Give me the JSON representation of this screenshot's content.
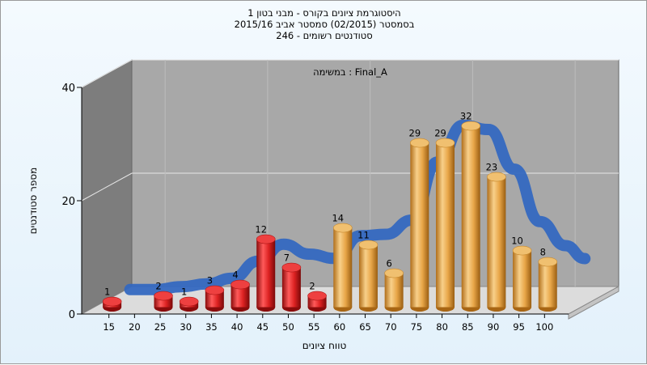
{
  "chart_data": {
    "type": "bar",
    "title_lines": [
      "היסטוגרמת ציונים בקורס - מבני בטון 1",
      "בסמסטר  (02/2015)  סמסטר אביב 2015/16",
      "סטודנטים רשומים - 246"
    ],
    "task_label": "במשימה : Final_A",
    "xlabel": "טווח ציונים",
    "ylabel": "מספר סטודנטים",
    "x_ticks": [
      "15",
      "20",
      "25",
      "30",
      "35",
      "40",
      "45",
      "50",
      "55",
      "60",
      "65",
      "70",
      "75",
      "80",
      "85",
      "90",
      "95",
      "100"
    ],
    "y_ticks": [
      "0",
      "20",
      "40"
    ],
    "ylim": [
      0,
      40
    ],
    "grid": true,
    "categories": [
      "0-15",
      "15-20",
      "20-25",
      "25-30",
      "30-35",
      "35-40",
      "40-45",
      "45-50",
      "50-55",
      "55-60",
      "60-65",
      "65-70",
      "70-75",
      "75-80",
      "80-85",
      "85-90",
      "90-95",
      "95-100"
    ],
    "values": [
      1,
      null,
      2,
      1,
      3,
      4,
      12,
      7,
      2,
      14,
      11,
      6,
      29,
      29,
      32,
      23,
      10,
      8
    ],
    "value_labels": [
      "1",
      "",
      "2",
      "1",
      "3",
      "4",
      "12",
      "7",
      "2",
      "14",
      "11",
      "6",
      "29",
      "29",
      "32",
      "23",
      "10",
      "8"
    ],
    "pass_threshold": 55,
    "colors": {
      "fail": "#dd2222",
      "pass": "#e8a648",
      "curve": "#3468c0",
      "back_wall": "#a8a8a8",
      "side_wall": "#7d7d7d",
      "floor": "#dcdcdc"
    }
  }
}
